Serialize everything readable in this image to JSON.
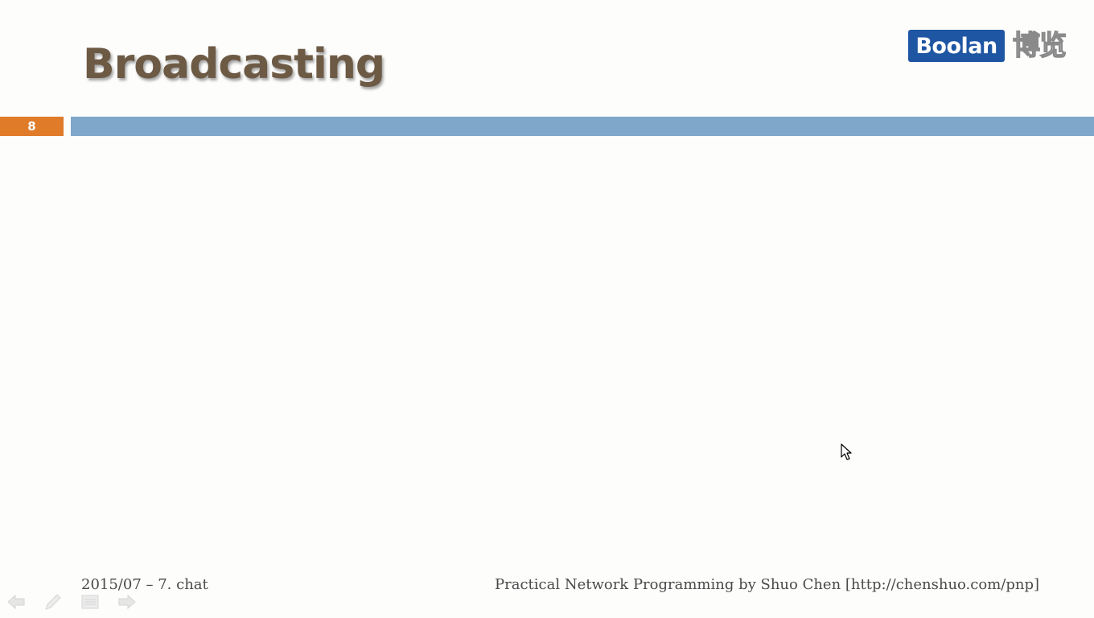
{
  "slide": {
    "title": "Broadcasting",
    "number": "8"
  },
  "brand": {
    "name": "Boolan",
    "chinese": "博览"
  },
  "footer": {
    "left": "2015/07 – 7. chat",
    "right": "Practical Network Programming by Shuo Chen [http://chenshuo.com/pnp]"
  },
  "colors": {
    "title": "#6d5a45",
    "slide_number_bg": "#e07b2a",
    "rule": "#7fa7c9",
    "brand_bg": "#1f56a3"
  },
  "icons": {
    "nav": [
      "previous-arrow-icon",
      "pen-icon",
      "menu-icon",
      "next-arrow-icon"
    ],
    "cursor": "mouse-cursor-icon"
  }
}
